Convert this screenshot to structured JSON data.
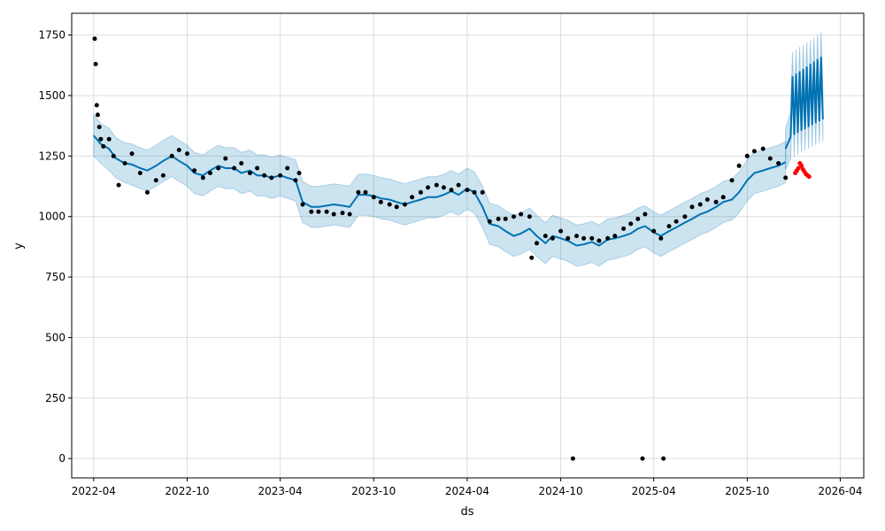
{
  "chart_data": {
    "type": "line",
    "title": "",
    "xlabel": "ds",
    "ylabel": "y",
    "grid": true,
    "xlim": [
      "2022-02-17",
      "2026-05-17"
    ],
    "ylim": [
      -80,
      1840
    ],
    "x_ticks": [
      "2022-04",
      "2022-10",
      "2023-04",
      "2023-10",
      "2024-04",
      "2024-10",
      "2025-04",
      "2025-10",
      "2026-04"
    ],
    "y_ticks": [
      0,
      250,
      500,
      750,
      1000,
      1250,
      1500,
      1750
    ],
    "colors": {
      "forecast": "#0072B2",
      "uncertainty": "#0072B2",
      "observed": "#000000",
      "future_actual": "#ff0000",
      "grid": "#dddddd"
    },
    "forecast": {
      "x": [
        "2022-04-01",
        "2022-04-15",
        "2022-05-01",
        "2022-05-15",
        "2022-06-01",
        "2022-06-15",
        "2022-07-01",
        "2022-07-15",
        "2022-08-01",
        "2022-08-15",
        "2022-09-01",
        "2022-09-15",
        "2022-10-01",
        "2022-10-15",
        "2022-11-01",
        "2022-11-15",
        "2022-12-01",
        "2022-12-15",
        "2023-01-01",
        "2023-01-15",
        "2023-02-01",
        "2023-02-15",
        "2023-03-01",
        "2023-03-15",
        "2023-04-01",
        "2023-04-15",
        "2023-05-01",
        "2023-05-15",
        "2023-06-01",
        "2023-06-15",
        "2023-07-01",
        "2023-07-15",
        "2023-08-01",
        "2023-08-15",
        "2023-09-01",
        "2023-09-15",
        "2023-10-01",
        "2023-10-15",
        "2023-11-01",
        "2023-11-15",
        "2023-12-01",
        "2023-12-15",
        "2024-01-01",
        "2024-01-15",
        "2024-02-01",
        "2024-02-15",
        "2024-03-01",
        "2024-03-15",
        "2024-04-01",
        "2024-04-15",
        "2024-05-01",
        "2024-05-15",
        "2024-06-01",
        "2024-06-15",
        "2024-07-01",
        "2024-07-15",
        "2024-08-01",
        "2024-08-15",
        "2024-09-01",
        "2024-09-15",
        "2024-10-01",
        "2024-10-15",
        "2024-11-01",
        "2024-11-15",
        "2024-12-01",
        "2024-12-15",
        "2025-01-01",
        "2025-01-15",
        "2025-02-01",
        "2025-02-15",
        "2025-03-01",
        "2025-03-15",
        "2025-04-01",
        "2025-04-15",
        "2025-05-01",
        "2025-05-15",
        "2025-06-01",
        "2025-06-15",
        "2025-07-01",
        "2025-07-15",
        "2025-08-01",
        "2025-08-15",
        "2025-09-01",
        "2025-09-15",
        "2025-10-01",
        "2025-10-15",
        "2025-11-01",
        "2025-11-15",
        "2025-12-01",
        "2025-12-15"
      ],
      "yhat": [
        1335,
        1300,
        1280,
        1240,
        1220,
        1215,
        1200,
        1190,
        1210,
        1230,
        1250,
        1230,
        1210,
        1180,
        1170,
        1190,
        1210,
        1200,
        1200,
        1180,
        1190,
        1170,
        1170,
        1160,
        1170,
        1160,
        1150,
        1060,
        1040,
        1040,
        1045,
        1050,
        1045,
        1040,
        1090,
        1090,
        1085,
        1075,
        1070,
        1060,
        1050,
        1060,
        1070,
        1080,
        1080,
        1090,
        1105,
        1090,
        1115,
        1100,
        1040,
        970,
        960,
        940,
        920,
        930,
        950,
        920,
        890,
        920,
        910,
        900,
        880,
        885,
        895,
        880,
        905,
        910,
        920,
        930,
        950,
        960,
        935,
        920,
        940,
        955,
        975,
        990,
        1010,
        1020,
        1040,
        1060,
        1070,
        1100,
        1150,
        1180,
        1190,
        1200,
        1210,
        1225,
        1260,
        1280
      ]
    },
    "uncertainty": {
      "lower": [
        1250,
        1220,
        1190,
        1160,
        1140,
        1130,
        1115,
        1105,
        1125,
        1145,
        1165,
        1145,
        1125,
        1095,
        1085,
        1105,
        1125,
        1115,
        1115,
        1095,
        1105,
        1085,
        1085,
        1075,
        1085,
        1075,
        1065,
        975,
        955,
        955,
        960,
        965,
        960,
        955,
        1005,
        1005,
        1000,
        990,
        985,
        975,
        965,
        975,
        985,
        995,
        995,
        1005,
        1020,
        1005,
        1030,
        1015,
        955,
        885,
        875,
        855,
        835,
        845,
        865,
        835,
        805,
        835,
        825,
        815,
        795,
        800,
        810,
        795,
        820,
        825,
        835,
        845,
        865,
        875,
        850,
        835,
        855,
        870,
        890,
        905,
        925,
        935,
        955,
        975,
        985,
        1015,
        1065,
        1095,
        1105,
        1115,
        1125,
        1140,
        1175,
        1195
      ],
      "upper": [
        1420,
        1385,
        1365,
        1325,
        1305,
        1300,
        1285,
        1275,
        1295,
        1315,
        1335,
        1315,
        1295,
        1265,
        1255,
        1275,
        1295,
        1285,
        1285,
        1265,
        1275,
        1255,
        1255,
        1245,
        1255,
        1245,
        1235,
        1145,
        1125,
        1125,
        1130,
        1135,
        1130,
        1125,
        1175,
        1175,
        1170,
        1160,
        1155,
        1145,
        1135,
        1145,
        1155,
        1165,
        1165,
        1175,
        1190,
        1175,
        1200,
        1185,
        1125,
        1055,
        1045,
        1025,
        1005,
        1015,
        1035,
        1005,
        975,
        1005,
        995,
        985,
        965,
        970,
        980,
        965,
        990,
        995,
        1005,
        1015,
        1035,
        1045,
        1020,
        1005,
        1025,
        1040,
        1060,
        1075,
        1095,
        1105,
        1125,
        1145,
        1155,
        1185,
        1235,
        1265,
        1275,
        1285,
        1295,
        1310,
        1345,
        1365
      ]
    },
    "forecast_future": {
      "x_start": "2025-12-25",
      "x_end": "2026-03-01",
      "trough_start": 1330,
      "trough_end": 1405,
      "peak_start": 1575,
      "peak_end": 1670,
      "lower_offset": 90,
      "upper_offset": 100
    },
    "observed": {
      "x": [
        "2022-04-03",
        "2022-04-05",
        "2022-04-07",
        "2022-04-09",
        "2022-04-12",
        "2022-04-15",
        "2022-04-20",
        "2022-05-01",
        "2022-05-10",
        "2022-05-20",
        "2022-06-01",
        "2022-06-15",
        "2022-07-01",
        "2022-07-15",
        "2022-08-01",
        "2022-08-15",
        "2022-09-01",
        "2022-09-15",
        "2022-10-01",
        "2022-10-15",
        "2022-11-01",
        "2022-11-15",
        "2022-12-01",
        "2022-12-15",
        "2023-01-01",
        "2023-01-15",
        "2023-02-01",
        "2023-02-15",
        "2023-03-01",
        "2023-03-15",
        "2023-04-01",
        "2023-04-15",
        "2023-05-01",
        "2023-05-08",
        "2023-05-15",
        "2023-06-01",
        "2023-06-15",
        "2023-07-01",
        "2023-07-15",
        "2023-08-01",
        "2023-08-15",
        "2023-09-01",
        "2023-09-15",
        "2023-10-01",
        "2023-10-15",
        "2023-11-01",
        "2023-11-15",
        "2023-12-01",
        "2023-12-15",
        "2024-01-01",
        "2024-01-15",
        "2024-02-01",
        "2024-02-15",
        "2024-03-01",
        "2024-03-15",
        "2024-04-01",
        "2024-04-15",
        "2024-05-01",
        "2024-05-15",
        "2024-06-01",
        "2024-06-15",
        "2024-07-01",
        "2024-07-15",
        "2024-08-01",
        "2024-08-05",
        "2024-08-15",
        "2024-09-01",
        "2024-09-15",
        "2024-10-01",
        "2024-10-15",
        "2024-10-25",
        "2024-11-01",
        "2024-11-15",
        "2024-12-01",
        "2024-12-15",
        "2025-01-01",
        "2025-01-15",
        "2025-02-01",
        "2025-02-15",
        "2025-03-01",
        "2025-03-10",
        "2025-03-15",
        "2025-04-01",
        "2025-04-15",
        "2025-04-20",
        "2025-05-01",
        "2025-05-15",
        "2025-06-01",
        "2025-06-15",
        "2025-07-01",
        "2025-07-15",
        "2025-08-01",
        "2025-08-15",
        "2025-09-01",
        "2025-09-15",
        "2025-10-01",
        "2025-10-15",
        "2025-11-01",
        "2025-11-15",
        "2025-12-01",
        "2025-12-15"
      ],
      "y": [
        1735,
        1630,
        1460,
        1420,
        1370,
        1320,
        1290,
        1320,
        1250,
        1130,
        1220,
        1260,
        1180,
        1100,
        1150,
        1170,
        1250,
        1275,
        1260,
        1190,
        1160,
        1180,
        1200,
        1240,
        1200,
        1220,
        1180,
        1200,
        1170,
        1160,
        1170,
        1200,
        1150,
        1180,
        1050,
        1020,
        1020,
        1020,
        1010,
        1015,
        1010,
        1100,
        1100,
        1080,
        1060,
        1050,
        1040,
        1050,
        1080,
        1100,
        1120,
        1130,
        1120,
        1110,
        1130,
        1110,
        1100,
        1100,
        980,
        990,
        990,
        1000,
        1010,
        1000,
        830,
        890,
        920,
        910,
        940,
        910,
        0,
        920,
        910,
        910,
        900,
        910,
        920,
        950,
        970,
        990,
        0,
        1010,
        940,
        910,
        0,
        960,
        980,
        1000,
        1040,
        1050,
        1070,
        1060,
        1080,
        1150,
        1210,
        1250,
        1270,
        1280,
        1240,
        1220,
        1160
      ]
    },
    "future_actual": {
      "x": [
        "2026-01-03",
        "2026-01-06",
        "2026-01-09",
        "2026-01-12",
        "2026-01-15",
        "2026-01-18",
        "2026-01-21",
        "2026-01-24",
        "2026-01-27",
        "2026-01-30"
      ],
      "y": [
        1180,
        1190,
        1200,
        1220,
        1210,
        1195,
        1185,
        1175,
        1170,
        1165
      ]
    }
  }
}
